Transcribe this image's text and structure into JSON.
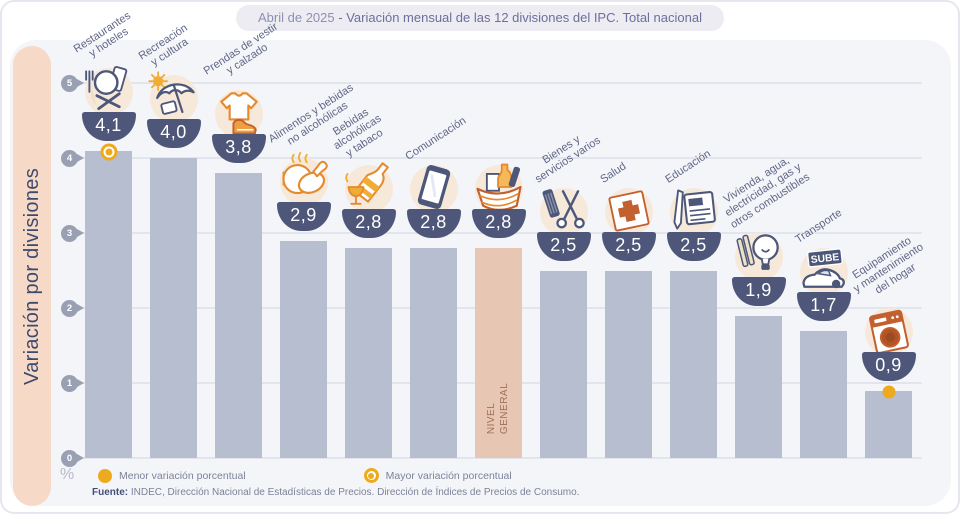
{
  "title": {
    "period": "Abril de 2025",
    "rest": " - Variación mensual de las 12 divisiones del IPC. Total nacional"
  },
  "y_axis": {
    "label": "Variación por divisiones",
    "unit": "%",
    "ticks": [
      5,
      4,
      3,
      2,
      1,
      0
    ]
  },
  "legend": [
    {
      "marker": "solid-dot",
      "label": "Menor variación porcentual"
    },
    {
      "marker": "ring-dot",
      "label": "Mayor variación porcentual"
    }
  ],
  "source": {
    "prefix": "Fuente:",
    "text": " INDEC, Dirección Nacional de Estadísticas de Precios. Dirección de Índices de Precios de Consumo."
  },
  "colors": {
    "bar": "#b7bed0",
    "highlight_bar": "#e7c7b3",
    "bowl": "#4e5779",
    "marker_yellow": "#edaa1f",
    "sidebar_bg": "#f6d9c7",
    "orange_accent": "#e58a2e",
    "terracotta_accent": "#c2602f"
  },
  "chart_data": {
    "type": "bar",
    "title": "Abril de 2025 - Variación mensual de las 12 divisiones del IPC. Total nacional",
    "ylabel": "Variación por divisiones",
    "y_unit": "%",
    "ylim": [
      0,
      5
    ],
    "grid": true,
    "legend_position": "bottom",
    "bars": [
      {
        "id": "restaurantes-hoteles",
        "label": "Restaurantes\ny hoteles",
        "value": 4.1,
        "display_value": "4,1",
        "icon": "restaurantes",
        "marker": "max"
      },
      {
        "id": "recreacion-cultura",
        "label": "Recreación\ny cultura",
        "value": 4.0,
        "display_value": "4,0",
        "icon": "recreacion",
        "marker": null
      },
      {
        "id": "prendas-vestir-calzado",
        "label": "Prendas de vestir\ny calzado",
        "value": 3.8,
        "display_value": "3,8",
        "icon": "prendas",
        "marker": null
      },
      {
        "id": "alimentos-bebidas-no-alcoholicas",
        "label": "Alimentos y bebidas\nno alcohólicas",
        "value": 2.9,
        "display_value": "2,9",
        "icon": "alimentos",
        "marker": null
      },
      {
        "id": "bebidas-alcoholicas-tabaco",
        "label": "Bebidas\nalcohólicas\ny tabaco",
        "value": 2.8,
        "display_value": "2,8",
        "icon": "bebidas",
        "marker": null
      },
      {
        "id": "comunicacion",
        "label": "Comunicación",
        "value": 2.8,
        "display_value": "2,8",
        "icon": "comunicacion",
        "marker": null
      },
      {
        "id": "nivel-general",
        "label": "NIVEL\nGENERAL",
        "label_position": "inside",
        "highlight": true,
        "value": 2.8,
        "display_value": "2,8",
        "icon": "canasta",
        "marker": null
      },
      {
        "id": "bienes-servicios-varios",
        "label": "Bienes y\nservicios varios",
        "value": 2.5,
        "display_value": "2,5",
        "icon": "bienes",
        "marker": null
      },
      {
        "id": "salud",
        "label": "Salud",
        "value": 2.5,
        "display_value": "2,5",
        "icon": "salud",
        "marker": null
      },
      {
        "id": "educacion",
        "label": "Educación",
        "value": 2.5,
        "display_value": "2,5",
        "icon": "educacion",
        "marker": null
      },
      {
        "id": "vivienda-agua-electricidad-gas",
        "label": "Vivienda, agua,\nelectricidad, gas y\notros combustibles",
        "value": 1.9,
        "display_value": "1,9",
        "icon": "vivienda",
        "marker": null
      },
      {
        "id": "transporte",
        "label": "Transporte",
        "value": 1.7,
        "display_value": "1,7",
        "icon": "transporte",
        "icon_text": "SUBE",
        "marker": null
      },
      {
        "id": "equipamiento-hogar",
        "label": "Equipamiento\ny mantenimiento\ndel hogar",
        "value": 0.9,
        "display_value": "0,9",
        "icon": "equipamiento",
        "marker": "min"
      }
    ]
  }
}
